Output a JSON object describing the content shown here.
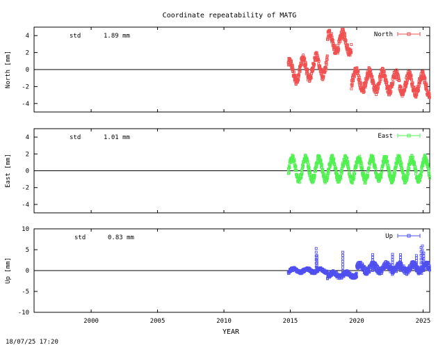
{
  "chart_data": [
    {
      "type": "scatter",
      "title": "Coordinate repeatability of MATG",
      "ylabel": "North [mm]",
      "xlabel": "",
      "xlim": [
        1995.7,
        2025.5
      ],
      "ylim": [
        -5,
        5
      ],
      "yticks": [
        4,
        2,
        0,
        -2,
        -4
      ],
      "xticks": [],
      "legend": "top-right",
      "annotation": {
        "label": "std",
        "value": "1.89 mm"
      },
      "series": [
        {
          "name": "North",
          "color": "#f05050",
          "segments": [
            {
              "x0": 2014.85,
              "x1": 2017.8,
              "base": -0.3,
              "amp": 1.2,
              "slope": 0.3,
              "phase": 0.3,
              "noise": 0.5
            },
            {
              "x0": 2017.8,
              "x1": 2019.6,
              "base": 3.2,
              "amp": 1.1,
              "slope": 0.0,
              "phase": 0.3,
              "noise": 0.5
            },
            {
              "x0": 2019.6,
              "x1": 2025.5,
              "base": -1.2,
              "amp": 1.1,
              "slope": -0.1,
              "phase": 0.3,
              "noise": 0.5
            }
          ]
        }
      ]
    },
    {
      "type": "scatter",
      "title": "",
      "ylabel": "East [mm]",
      "xlabel": "",
      "xlim": [
        1995.7,
        2025.5
      ],
      "ylim": [
        -5,
        5
      ],
      "yticks": [
        4,
        2,
        0,
        -2,
        -4
      ],
      "xticks": [],
      "legend": "top-right",
      "annotation": {
        "label": "std",
        "value": "1.01 mm"
      },
      "series": [
        {
          "name": "East",
          "color": "#50f050",
          "segments": [
            {
              "x0": 2014.85,
              "x1": 2025.5,
              "base": 0.2,
              "amp": 1.3,
              "slope": 0.0,
              "phase": 0.1,
              "noise": 0.4
            }
          ]
        }
      ]
    },
    {
      "type": "scatter",
      "title": "",
      "ylabel": "Up [mm]",
      "xlabel": "YEAR",
      "xlim": [
        1995.7,
        2025.5
      ],
      "ylim": [
        -10,
        10
      ],
      "yticks": [
        10,
        5,
        0,
        -5,
        -10
      ],
      "xticks": [
        2000,
        2005,
        2010,
        2015,
        2020,
        2025
      ],
      "legend": "top-right",
      "annotation": {
        "label": "std",
        "value": "0.83 mm"
      },
      "series": [
        {
          "name": "Up",
          "color": "#5050f0",
          "segments": [
            {
              "x0": 2014.85,
              "x1": 2017.8,
              "base": 0.0,
              "amp": 0.4,
              "slope": 0.0,
              "phase": 0.0,
              "noise": 0.4
            },
            {
              "x0": 2017.8,
              "x1": 2020.0,
              "base": -1.0,
              "amp": 0.5,
              "slope": 0.0,
              "phase": 0.0,
              "noise": 0.5
            },
            {
              "x0": 2020.0,
              "x1": 2025.5,
              "base": 0.6,
              "amp": 0.8,
              "slope": 0.0,
              "phase": 0.0,
              "noise": 0.8
            }
          ],
          "spikes": [
            [
              2016.95,
              5.3
            ],
            [
              2017.0,
              3.6
            ],
            [
              2018.95,
              4.4
            ],
            [
              2021.2,
              3.8
            ],
            [
              2022.7,
              3.9
            ],
            [
              2023.3,
              3.8
            ],
            [
              2024.5,
              3.6
            ],
            [
              2024.85,
              5.5
            ],
            [
              2024.95,
              5.9
            ],
            [
              2025.05,
              4.2
            ]
          ]
        }
      ]
    }
  ],
  "footer": {
    "timestamp": "18/07/25 17:20"
  }
}
